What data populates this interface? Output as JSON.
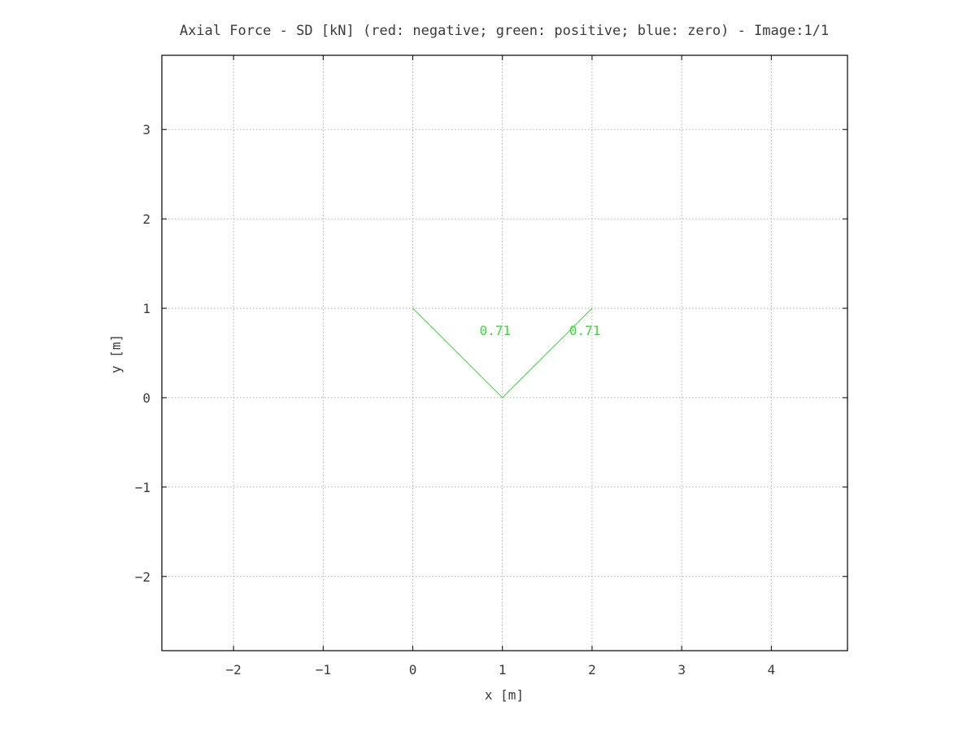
{
  "chart_data": {
    "type": "line",
    "title": "Axial Force - SD [kN] (red: negative; green: positive; blue: zero) - Image:1/1",
    "xlabel": "x [m]",
    "ylabel": "y [m]",
    "xlim": [
      -2.8,
      4.85
    ],
    "ylim": [
      -2.83,
      3.83
    ],
    "xticks": [
      -2,
      -1,
      0,
      1,
      2,
      3,
      4
    ],
    "yticks": [
      -2,
      -1,
      0,
      1,
      2,
      3
    ],
    "xtick_labels": [
      "−2",
      "−1",
      "0",
      "1",
      "2",
      "3",
      "4"
    ],
    "ytick_labels": [
      "−2",
      "−1",
      "0",
      "1",
      "2",
      "3"
    ],
    "grid": true,
    "colors": {
      "positive": "#33dd33",
      "negative": "#dd2222",
      "zero": "#2222dd"
    },
    "series": [
      {
        "x": [
          0,
          1
        ],
        "y": [
          1,
          0
        ],
        "value": 0.71,
        "label": "0.71",
        "label_at": [
          0.92,
          0.7
        ],
        "sign": "positive"
      },
      {
        "x": [
          1,
          2
        ],
        "y": [
          0,
          1
        ],
        "value": 0.71,
        "label": "0.71",
        "label_at": [
          1.92,
          0.7
        ],
        "sign": "positive"
      }
    ]
  }
}
